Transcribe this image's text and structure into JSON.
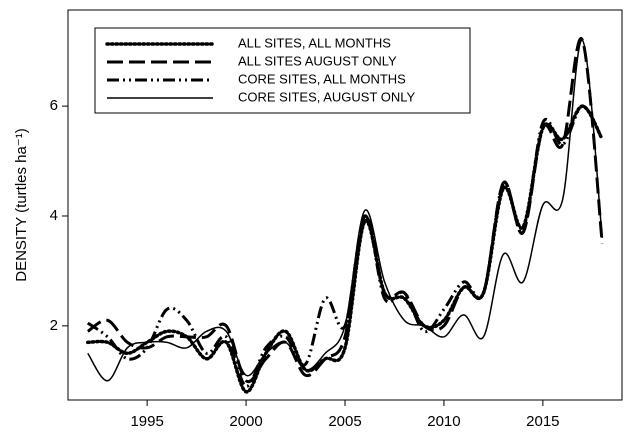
{
  "chart_data": {
    "type": "line",
    "y_label": "DENSITY (turtles ha⁻¹)",
    "x": [
      1992,
      1993,
      1994,
      1995,
      1996,
      1997,
      1998,
      1999,
      2000,
      2001,
      2002,
      2003,
      2004,
      2005,
      2006,
      2007,
      2008,
      2009,
      2010,
      2011,
      2012,
      2013,
      2014,
      2015,
      2016,
      2017,
      2018
    ],
    "series": [
      {
        "name": "ALL SITES, ALL MONTHS",
        "color": "#000000",
        "dash": "dot",
        "values": [
          1.7,
          1.7,
          1.5,
          1.7,
          1.9,
          1.8,
          1.4,
          1.7,
          0.8,
          1.5,
          1.9,
          1.2,
          1.4,
          1.6,
          3.9,
          2.6,
          2.5,
          2.0,
          2.1,
          2.7,
          2.6,
          4.5,
          3.8,
          5.6,
          5.4,
          6.0,
          5.4
        ]
      },
      {
        "name": "ALL SITES AUGUST ONLY",
        "color": "#000000",
        "dash": "dash",
        "values": [
          1.9,
          2.1,
          1.7,
          1.6,
          1.8,
          1.8,
          1.8,
          2.0,
          1.0,
          1.4,
          1.7,
          1.1,
          1.4,
          1.8,
          4.0,
          2.6,
          2.6,
          2.0,
          2.0,
          2.7,
          2.6,
          4.6,
          3.7,
          5.6,
          5.3,
          7.2,
          3.5
        ]
      },
      {
        "name": "CORE SITES, ALL MONTHS",
        "color": "#000000",
        "dash": "dashdotdot",
        "values": [
          2.05,
          1.8,
          1.4,
          1.6,
          2.3,
          2.1,
          1.5,
          1.8,
          0.9,
          1.6,
          1.8,
          1.3,
          2.5,
          2.0,
          4.0,
          2.5,
          2.6,
          1.9,
          2.3,
          2.8,
          2.6,
          4.6,
          3.7,
          5.7,
          5.3,
          6.0,
          5.4
        ]
      },
      {
        "name": "CORE SITES, AUGUST ONLY",
        "color": "#000000",
        "dash": "solid",
        "values": [
          1.5,
          1.0,
          1.6,
          1.7,
          1.7,
          1.6,
          1.9,
          1.9,
          1.1,
          1.5,
          1.7,
          1.2,
          1.5,
          2.0,
          4.1,
          2.8,
          2.1,
          2.0,
          1.8,
          2.2,
          1.8,
          3.3,
          2.8,
          4.2,
          4.3,
          7.2,
          3.6
        ]
      }
    ],
    "xlim": [
      1991,
      2019
    ],
    "xticks": [
      1995,
      2000,
      2005,
      2010,
      2015
    ],
    "ylim": [
      0.65,
      7.75
    ],
    "yticks": [
      2,
      4,
      6
    ],
    "grid": false,
    "legend": "upper left"
  }
}
